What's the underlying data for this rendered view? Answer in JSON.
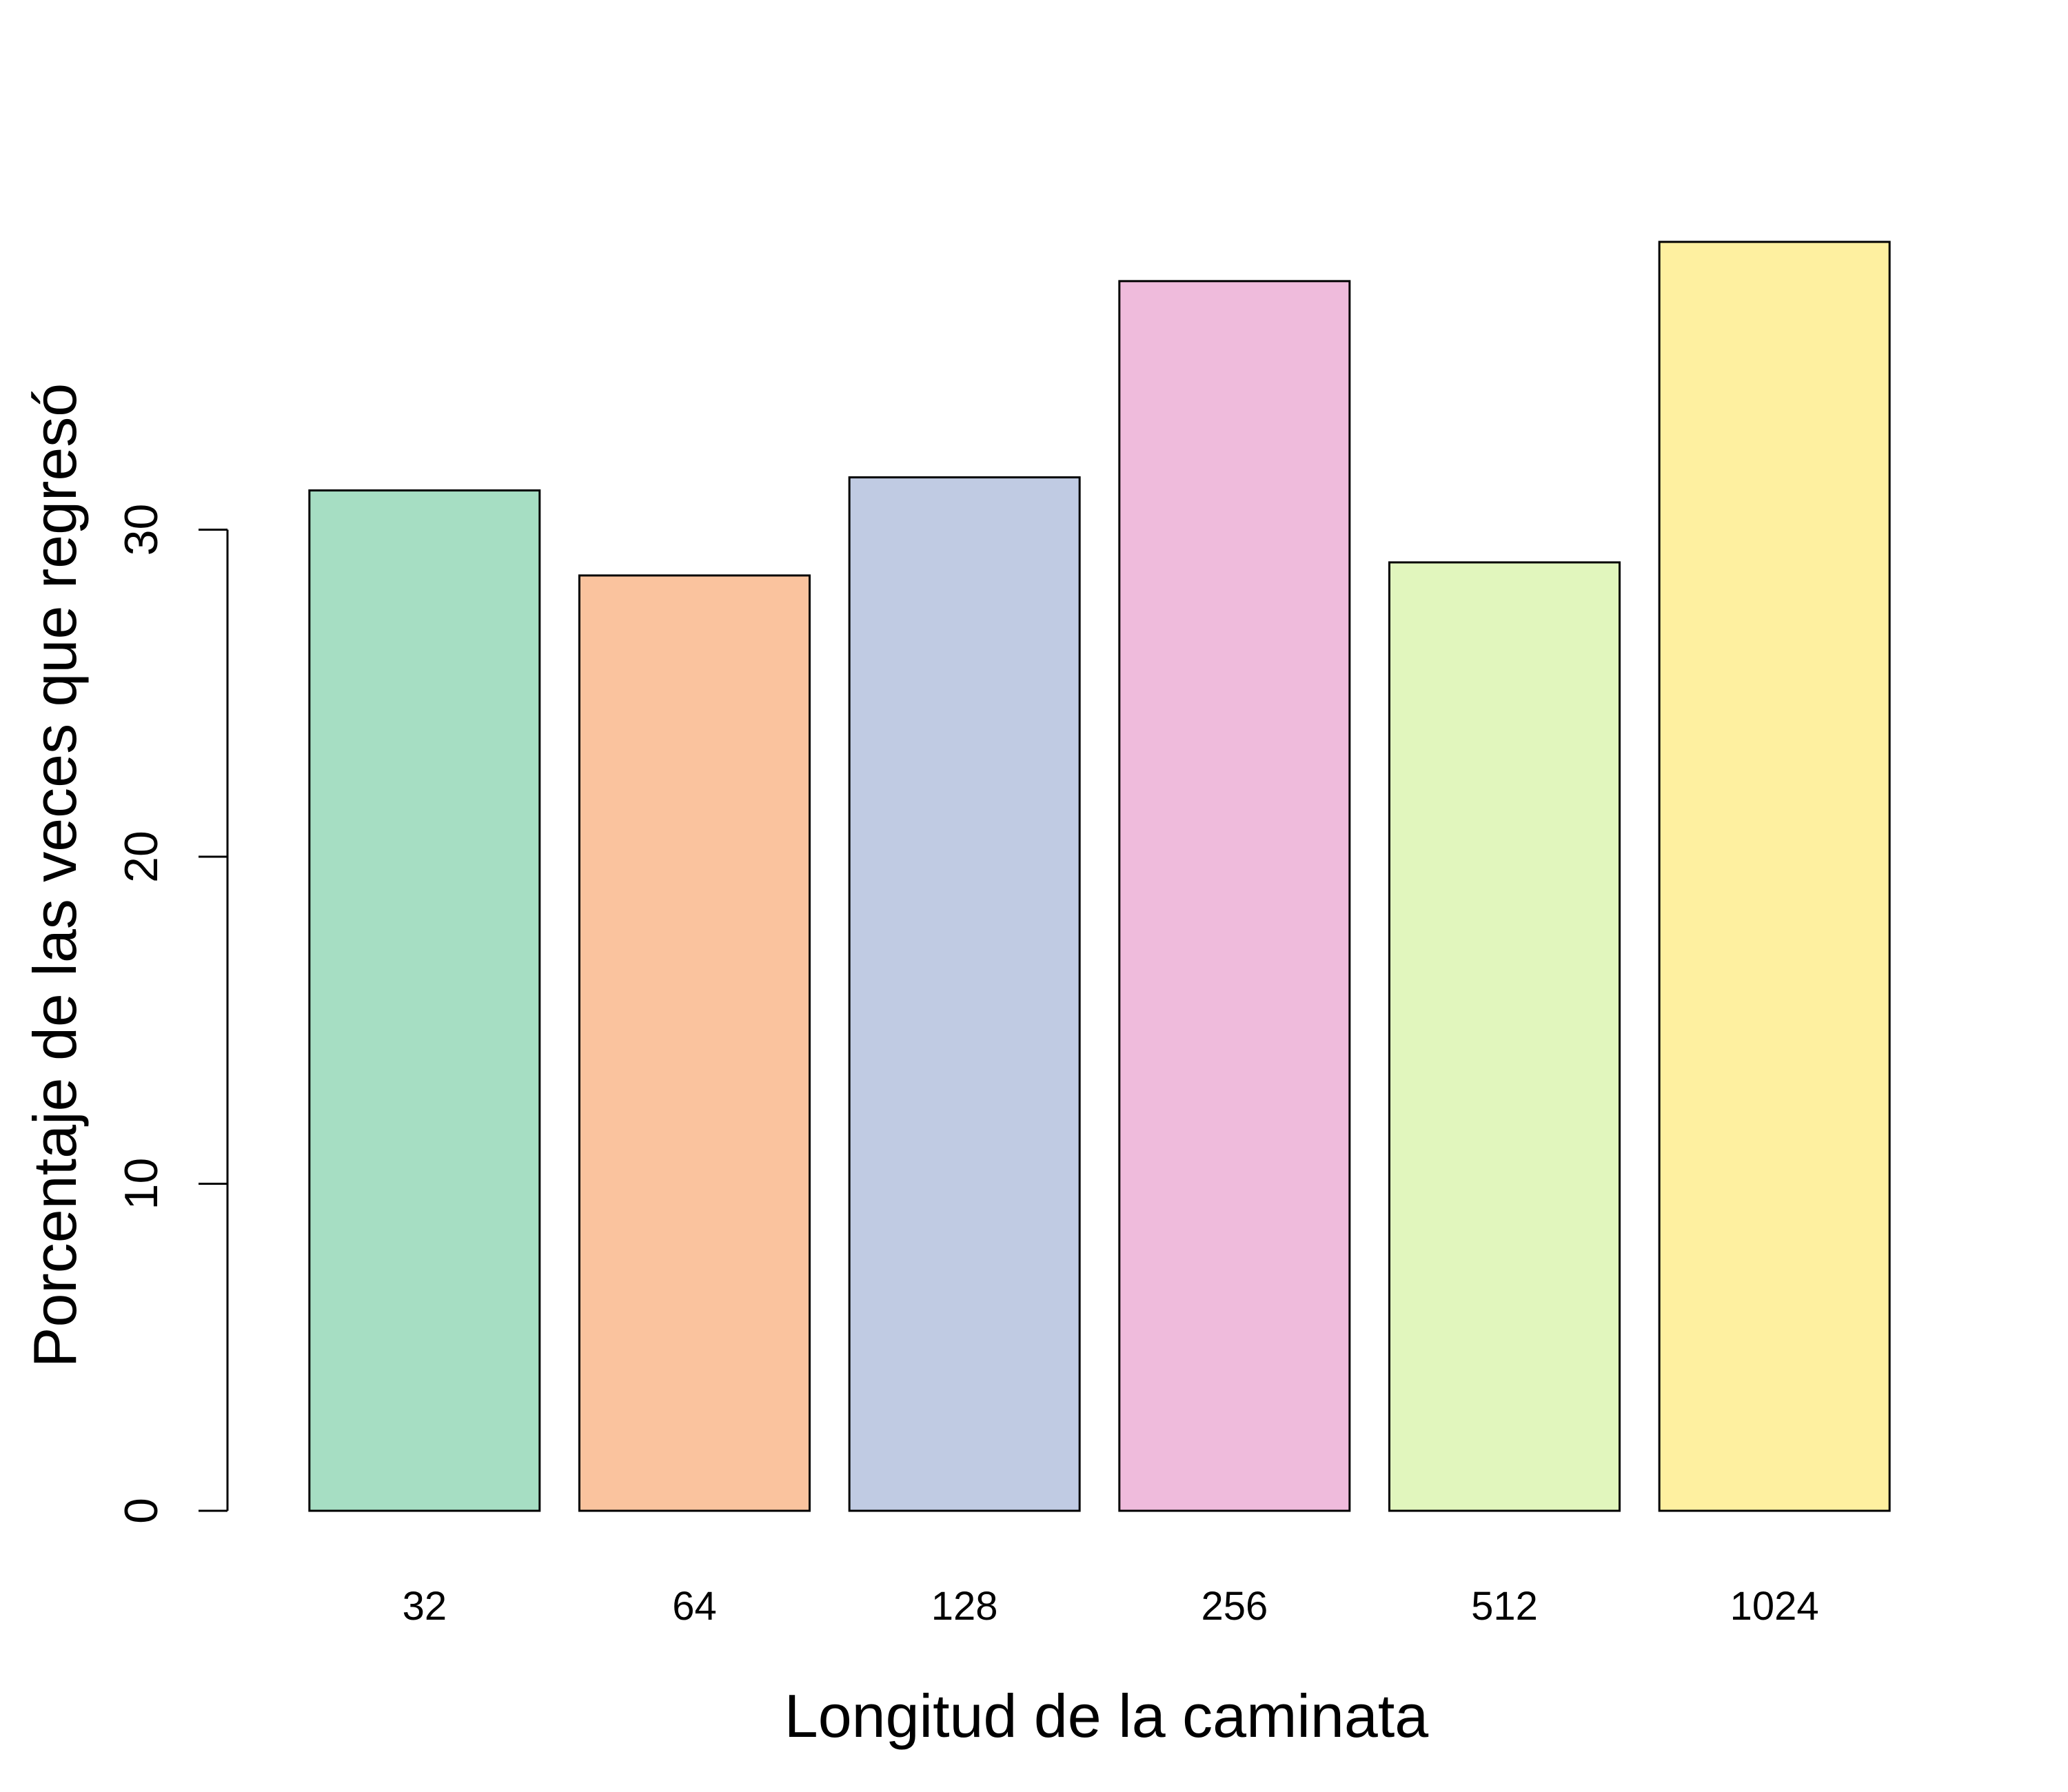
{
  "chart_data": {
    "type": "bar",
    "title": "",
    "xlabel": "Longitud de la caminata",
    "ylabel": "Porcentaje de las veces que regresó",
    "categories": [
      "32",
      "64",
      "128",
      "256",
      "512",
      "1024"
    ],
    "values": [
      31.2,
      28.6,
      31.6,
      37.6,
      29.0,
      38.8
    ],
    "colors": [
      "#A6DEC3",
      "#FAC39E",
      "#C0CBE3",
      "#EFBBDC",
      "#E1F6BD",
      "#FEF0A0"
    ],
    "ylim": [
      0,
      40
    ],
    "yticks": [
      0,
      10,
      20,
      30
    ],
    "ytick_labels": [
      "0",
      "10",
      "20",
      "30"
    ],
    "grid": false,
    "legend": false
  }
}
